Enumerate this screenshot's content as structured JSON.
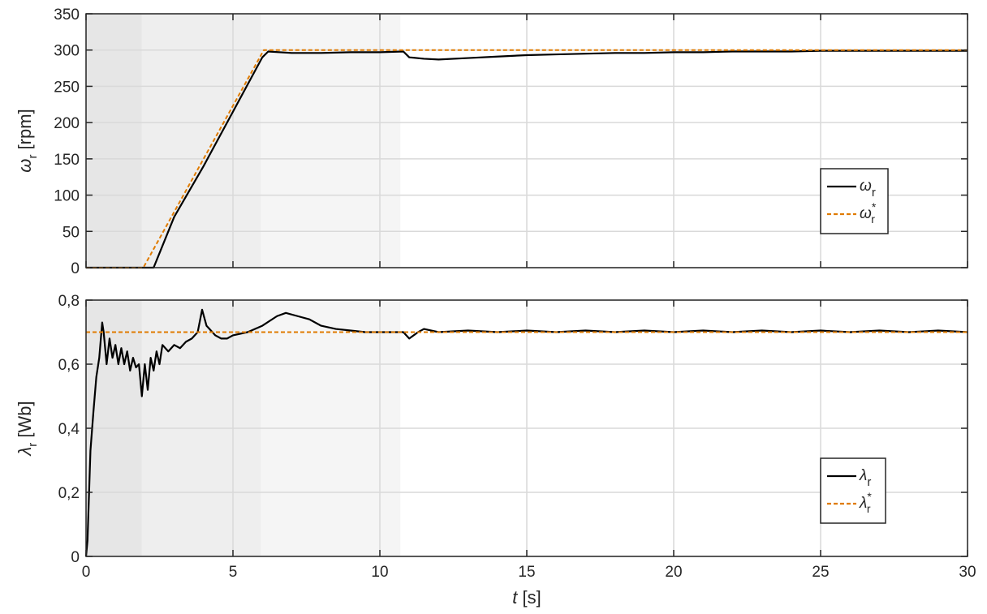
{
  "chart_data": [
    {
      "type": "line",
      "panel": "top",
      "ylabel": "ω_r [rpm]",
      "ylabel_main": "ω",
      "ylabel_sub": "r",
      "ylabel_unit": " [rpm]",
      "xlim": [
        0,
        30
      ],
      "ylim": [
        0,
        350
      ],
      "xticks": [
        0,
        5,
        10,
        15,
        20,
        25,
        30
      ],
      "yticks": [
        0,
        50,
        100,
        150,
        200,
        250,
        300,
        350
      ],
      "grid": true,
      "legend_position": "center-right",
      "shaded_regions": [
        {
          "x": [
            0,
            1.9
          ],
          "color": "#e6e6e6"
        },
        {
          "x": [
            1.9,
            5.95
          ],
          "color": "#eeeeee"
        },
        {
          "x": [
            5.95,
            10.7
          ],
          "color": "#f5f5f5"
        }
      ],
      "series": [
        {
          "name": "ω_r",
          "legend_main": "ω",
          "legend_sub": "r",
          "legend_sup": "",
          "color": "#000000",
          "style": "solid",
          "x": [
            0,
            2.3,
            2.4,
            3,
            4,
            5,
            6,
            6.2,
            7,
            8,
            9,
            10,
            10.8,
            11,
            11.5,
            12,
            13,
            14,
            15,
            16,
            17,
            18,
            19,
            20,
            21,
            22,
            23,
            24,
            25,
            26,
            27,
            28,
            29,
            30
          ],
          "y": [
            0,
            0,
            10,
            70,
            140,
            215,
            290,
            298,
            296,
            296,
            297,
            297,
            298,
            290,
            288,
            287,
            289,
            291,
            293,
            294,
            295,
            296,
            296,
            297,
            297,
            298,
            298,
            298,
            299,
            299,
            299,
            299,
            299,
            299
          ]
        },
        {
          "name": "ω*_r",
          "legend_main": "ω",
          "legend_sub": "r",
          "legend_sup": "*",
          "color": "#e07b00",
          "style": "dashed",
          "x": [
            0,
            1.95,
            6.05,
            30
          ],
          "y": [
            0,
            0,
            300,
            300
          ]
        }
      ]
    },
    {
      "type": "line",
      "panel": "bottom",
      "ylabel": "λ_r [Wb]",
      "ylabel_main": "λ",
      "ylabel_sub": "r",
      "ylabel_unit": " [Wb]",
      "xlabel": "t [s]",
      "xlabel_main": "t",
      "xlabel_unit": " [s]",
      "xlim": [
        0,
        30
      ],
      "ylim": [
        0,
        0.8
      ],
      "xticks": [
        0,
        5,
        10,
        15,
        20,
        25,
        30
      ],
      "xtick_labels": [
        "0",
        "5",
        "10",
        "15",
        "20",
        "25",
        "30"
      ],
      "yticks": [
        0,
        0.2,
        0.4,
        0.6,
        0.8
      ],
      "ytick_labels": [
        "0",
        "0,2",
        "0,4",
        "0,6",
        "0,8"
      ],
      "grid": true,
      "legend_position": "lower-right",
      "shaded_regions": [
        {
          "x": [
            0,
            1.9
          ],
          "color": "#e6e6e6"
        },
        {
          "x": [
            1.9,
            5.95
          ],
          "color": "#eeeeee"
        },
        {
          "x": [
            5.95,
            10.7
          ],
          "color": "#f5f5f5"
        }
      ],
      "series": [
        {
          "name": "λ_r",
          "legend_main": "λ",
          "legend_sub": "r",
          "legend_sup": "",
          "color": "#000000",
          "style": "solid",
          "x": [
            0,
            0.05,
            0.15,
            0.25,
            0.35,
            0.45,
            0.55,
            0.6,
            0.7,
            0.8,
            0.9,
            1.0,
            1.1,
            1.2,
            1.3,
            1.4,
            1.5,
            1.6,
            1.7,
            1.8,
            1.9,
            2.0,
            2.1,
            2.2,
            2.3,
            2.4,
            2.5,
            2.6,
            2.8,
            3.0,
            3.2,
            3.4,
            3.6,
            3.8,
            3.95,
            4.1,
            4.2,
            4.4,
            4.6,
            4.8,
            5.0,
            5.5,
            6.0,
            6.5,
            6.8,
            7.2,
            7.6,
            8.0,
            8.5,
            9.0,
            9.5,
            10.0,
            10.5,
            10.8,
            11.0,
            11.3,
            11.5,
            12,
            13,
            14,
            15,
            16,
            17,
            18,
            19,
            20,
            21,
            22,
            23,
            24,
            25,
            26,
            27,
            28,
            29,
            30
          ],
          "y": [
            0,
            0.05,
            0.33,
            0.45,
            0.56,
            0.62,
            0.73,
            0.7,
            0.6,
            0.68,
            0.62,
            0.66,
            0.6,
            0.65,
            0.6,
            0.64,
            0.58,
            0.62,
            0.59,
            0.6,
            0.5,
            0.6,
            0.52,
            0.62,
            0.58,
            0.64,
            0.6,
            0.66,
            0.64,
            0.66,
            0.65,
            0.67,
            0.68,
            0.7,
            0.77,
            0.72,
            0.71,
            0.69,
            0.68,
            0.68,
            0.69,
            0.7,
            0.72,
            0.75,
            0.76,
            0.75,
            0.74,
            0.72,
            0.71,
            0.705,
            0.7,
            0.7,
            0.7,
            0.7,
            0.68,
            0.7,
            0.71,
            0.7,
            0.705,
            0.7,
            0.705,
            0.7,
            0.705,
            0.7,
            0.705,
            0.7,
            0.705,
            0.7,
            0.705,
            0.7,
            0.705,
            0.7,
            0.705,
            0.7,
            0.705,
            0.7
          ]
        },
        {
          "name": "λ*_r",
          "legend_main": "λ",
          "legend_sub": "r",
          "legend_sup": "*",
          "color": "#e07b00",
          "style": "dashed",
          "x": [
            0,
            30
          ],
          "y": [
            0.7,
            0.7
          ]
        }
      ]
    }
  ]
}
